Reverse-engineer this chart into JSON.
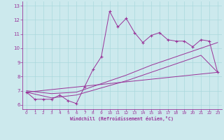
{
  "xlabel": "Windchill (Refroidissement éolien,°C)",
  "background_color": "#cce9ed",
  "line_color": "#993399",
  "xlim": [
    -0.5,
    23.5
  ],
  "ylim": [
    5.7,
    13.3
  ],
  "xticks": [
    0,
    1,
    2,
    3,
    4,
    5,
    6,
    7,
    8,
    9,
    10,
    11,
    12,
    13,
    14,
    15,
    16,
    17,
    18,
    19,
    20,
    21,
    22,
    23
  ],
  "yticks": [
    6,
    7,
    8,
    9,
    10,
    11,
    12,
    13
  ],
  "grid_color": "#aad8dc",
  "line1_x": [
    0,
    1,
    2,
    3,
    4,
    5,
    6,
    7,
    8,
    9,
    10,
    11,
    12,
    13,
    14,
    15,
    16,
    17,
    18,
    19,
    20,
    21,
    22,
    23
  ],
  "line1_y": [
    6.9,
    6.4,
    6.4,
    6.4,
    6.7,
    6.3,
    6.1,
    7.3,
    8.5,
    9.4,
    12.6,
    11.5,
    12.1,
    11.1,
    10.4,
    10.9,
    11.1,
    10.6,
    10.5,
    10.5,
    10.1,
    10.6,
    10.5,
    8.3
  ],
  "line2_x": [
    0,
    23
  ],
  "line2_y": [
    6.9,
    8.3
  ],
  "line3_x": [
    0,
    3,
    6,
    9,
    12,
    15,
    18,
    21,
    23
  ],
  "line3_y": [
    7.0,
    6.8,
    6.9,
    7.5,
    8.1,
    8.8,
    9.4,
    10.0,
    10.4
  ],
  "line4_x": [
    0,
    3,
    6,
    9,
    12,
    15,
    18,
    21,
    23
  ],
  "line4_y": [
    6.9,
    6.5,
    6.7,
    7.2,
    7.7,
    8.3,
    8.9,
    9.5,
    8.3
  ]
}
